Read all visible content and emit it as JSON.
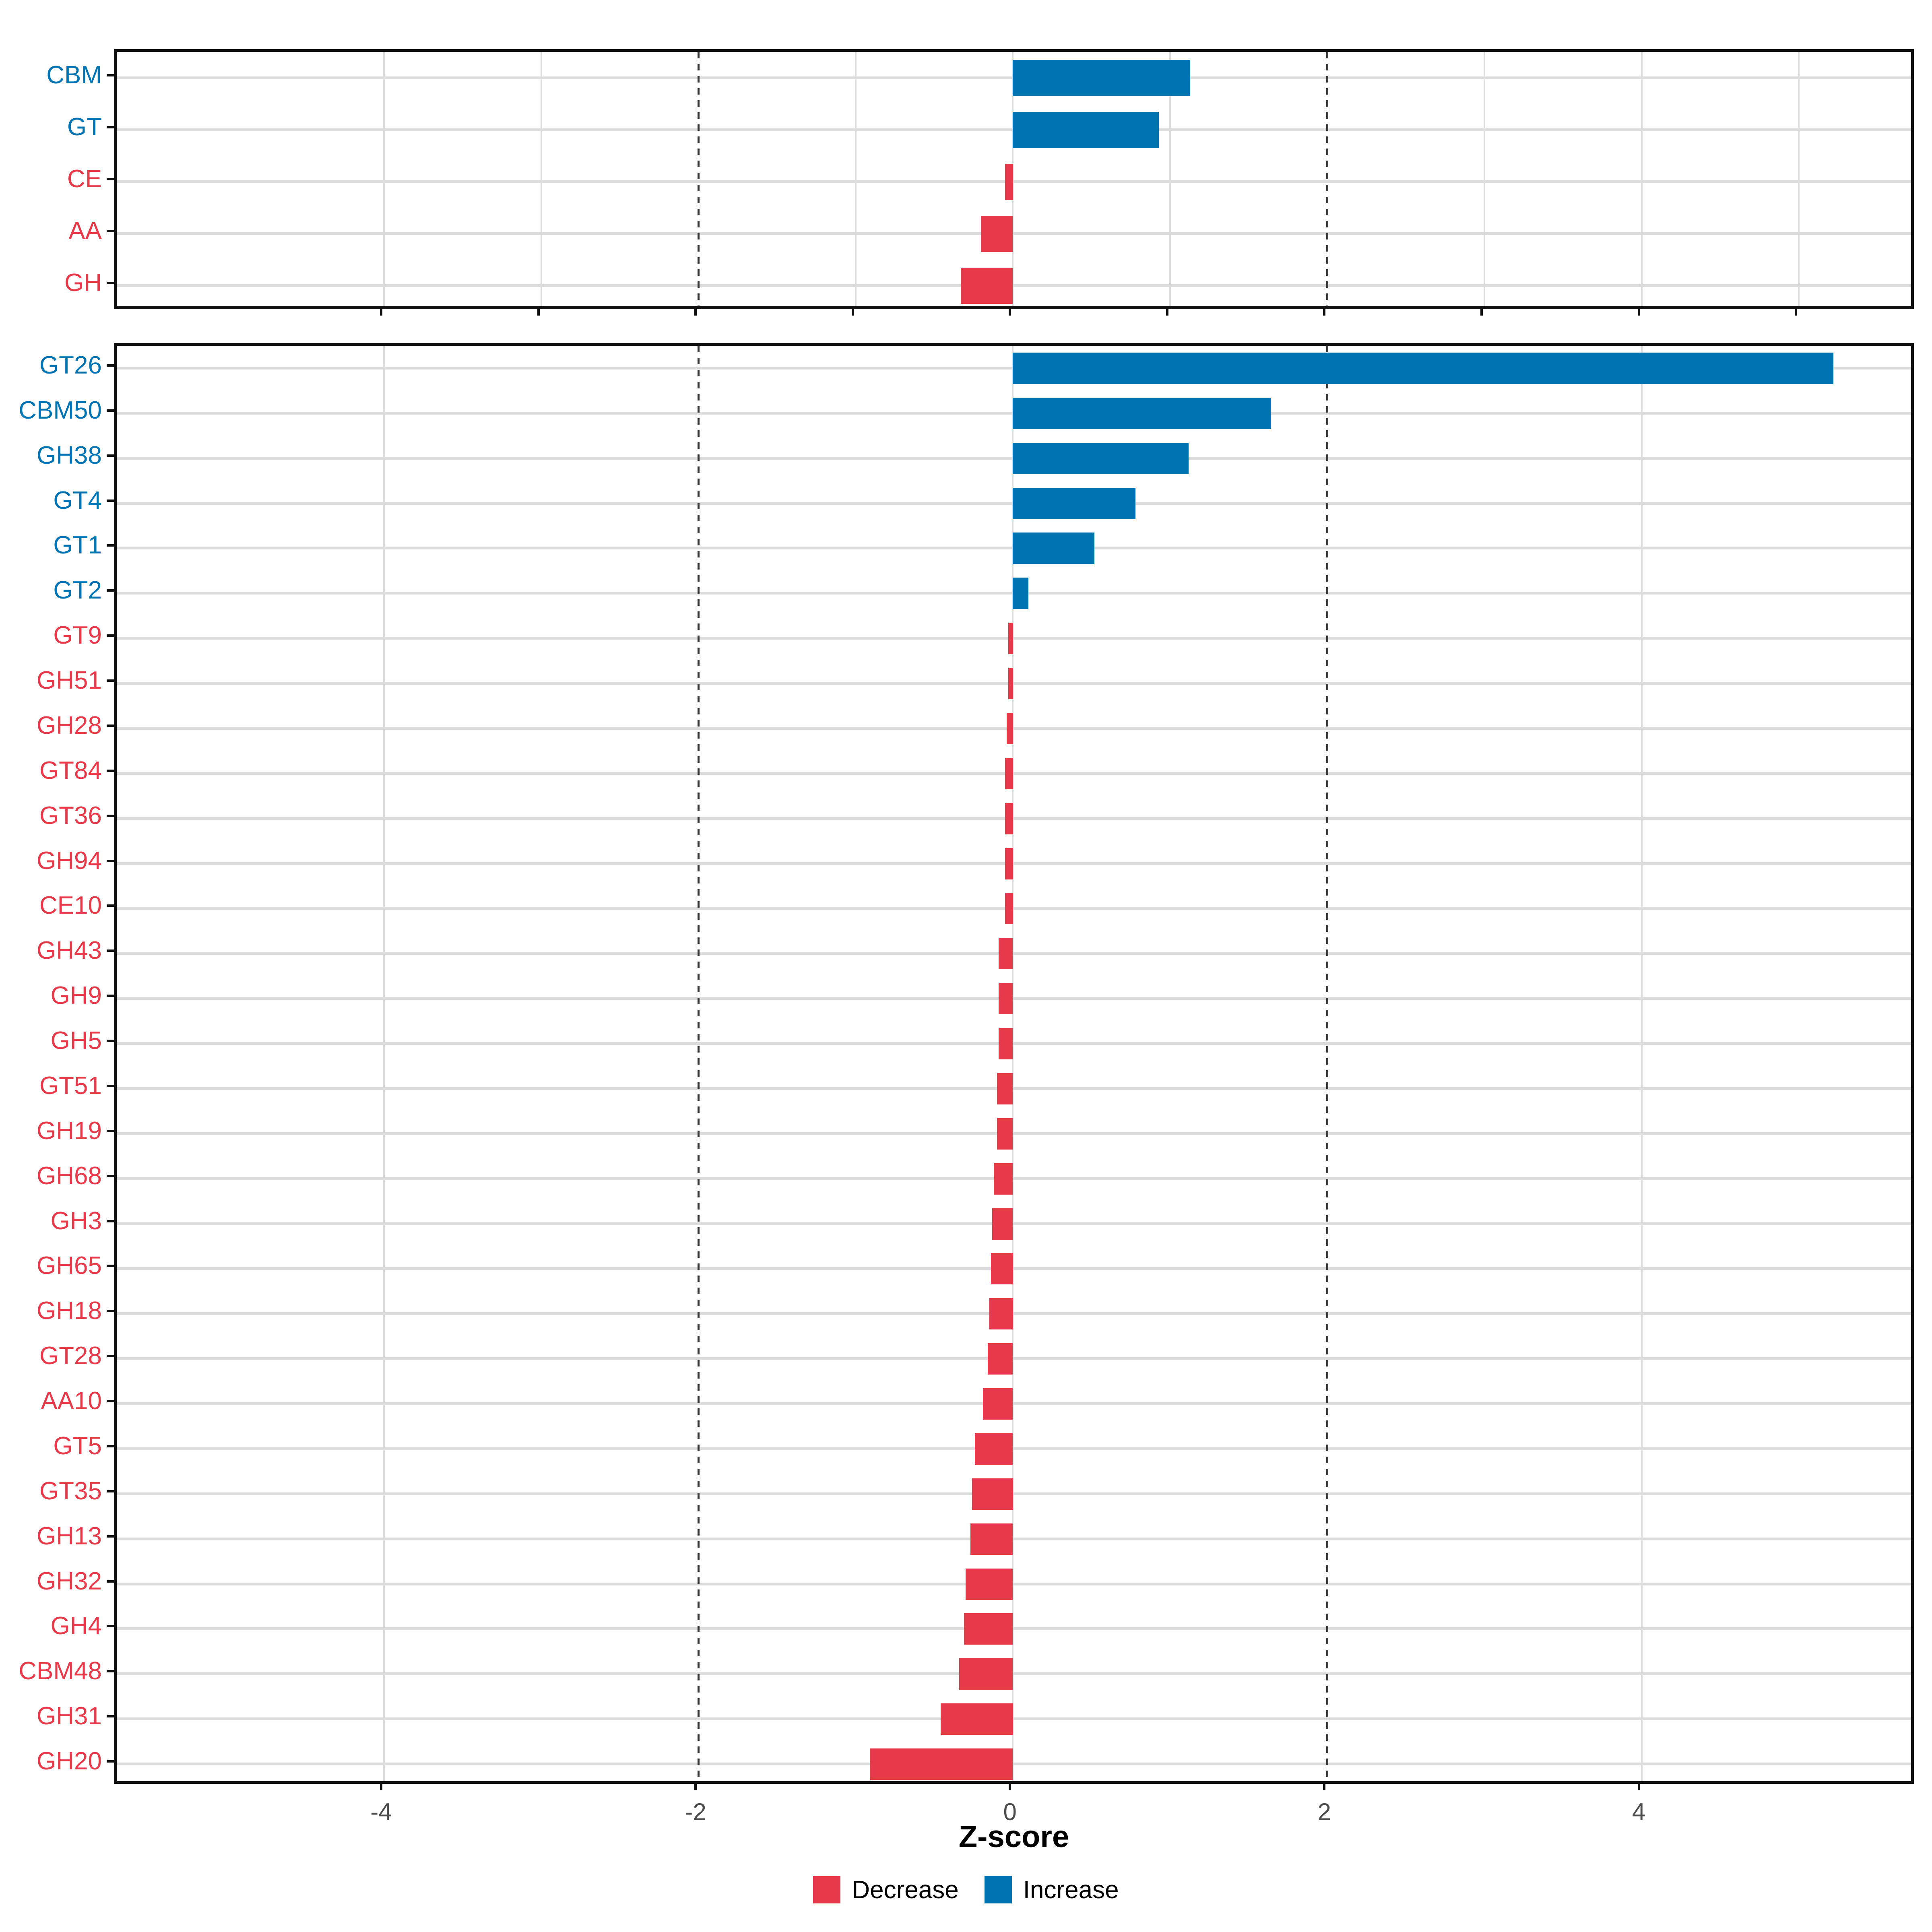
{
  "chart_title": "",
  "axis": {
    "label": "Z-score",
    "tick_values": [
      -4,
      -2,
      0,
      2,
      4
    ],
    "tick_labels": [
      "-4",
      "-2",
      "0",
      "2",
      "4"
    ],
    "domain": [
      -5.7,
      5.75
    ]
  },
  "colors": {
    "increase": "#0074B2",
    "decrease": "#E6394A",
    "grid": "#DCDCDC",
    "dashed_guide": "#3A3A3A",
    "panel_border": "#101010",
    "tick_label": "#4D4D4D",
    "text": "#000000"
  },
  "legend": {
    "items": [
      {
        "label": "Decrease",
        "color_key": "decrease"
      },
      {
        "label": "Increase",
        "color_key": "increase"
      }
    ]
  },
  "chart_data": [
    {
      "type": "bar",
      "orientation": "horizontal",
      "panel": "cazyme-classes",
      "xlabel": "Z-score",
      "ylabel": "",
      "xlim": [
        -5.7,
        5.75
      ],
      "grid_light": [
        -4,
        -3,
        -1,
        0,
        1,
        3,
        4,
        5
      ],
      "grid_dashed": [
        -2,
        2
      ],
      "axis_ticks": [
        -4,
        -3,
        -2,
        -1,
        0,
        1,
        2,
        3,
        4,
        5
      ],
      "categories": [
        "CBM",
        "GT",
        "CE",
        "AA",
        "GH"
      ],
      "values": [
        1.13,
        0.93,
        -0.05,
        -0.2,
        -0.33
      ],
      "directions": [
        "increase",
        "increase",
        "decrease",
        "decrease",
        "decrease"
      ]
    },
    {
      "type": "bar",
      "orientation": "horizontal",
      "panel": "cazyme-families",
      "xlabel": "Z-score",
      "ylabel": "",
      "xlim": [
        -5.7,
        5.75
      ],
      "grid_light": [
        -4,
        0,
        4
      ],
      "grid_dashed": [
        -2,
        2
      ],
      "axis_ticks": [
        -4,
        -2,
        0,
        2,
        4
      ],
      "categories": [
        "GT26",
        "CBM50",
        "GH38",
        "GT4",
        "GT1",
        "GT2",
        "GT9",
        "GH51",
        "GH28",
        "GT84",
        "GT36",
        "GH94",
        "CE10",
        "GH43",
        "GH9",
        "GH5",
        "GT51",
        "GH19",
        "GH68",
        "GH3",
        "GH65",
        "GH18",
        "GT28",
        "AA10",
        "GT5",
        "GT35",
        "GH13",
        "GH32",
        "GH4",
        "CBM48",
        "GH31",
        "GH20"
      ],
      "values": [
        5.22,
        1.64,
        1.12,
        0.78,
        0.52,
        0.1,
        -0.03,
        -0.03,
        -0.04,
        -0.05,
        -0.05,
        -0.05,
        -0.05,
        -0.09,
        -0.09,
        -0.09,
        -0.1,
        -0.1,
        -0.12,
        -0.13,
        -0.14,
        -0.15,
        -0.16,
        -0.19,
        -0.24,
        -0.26,
        -0.27,
        -0.3,
        -0.31,
        -0.34,
        -0.46,
        -0.91
      ],
      "directions": [
        "increase",
        "increase",
        "increase",
        "increase",
        "increase",
        "increase",
        "decrease",
        "decrease",
        "decrease",
        "decrease",
        "decrease",
        "decrease",
        "decrease",
        "decrease",
        "decrease",
        "decrease",
        "decrease",
        "decrease",
        "decrease",
        "decrease",
        "decrease",
        "decrease",
        "decrease",
        "decrease",
        "decrease",
        "decrease",
        "decrease",
        "decrease",
        "decrease",
        "decrease",
        "decrease",
        "decrease"
      ]
    }
  ]
}
